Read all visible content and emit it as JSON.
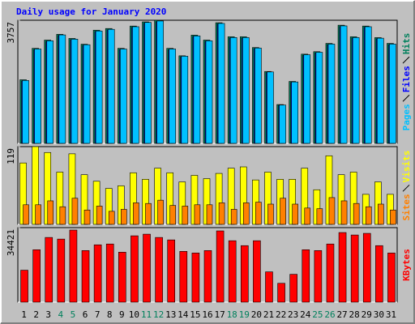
{
  "chart_data": [
    {
      "type": "bar",
      "title": "Daily usage for January 2020",
      "ylim": [
        0,
        3757
      ],
      "yticks": [
        3757
      ],
      "series": [
        {
          "name": "Hits",
          "color": "#00805c",
          "values": [
            1941,
            2900,
            3152,
            3328,
            3202,
            3026,
            3454,
            3505,
            2900,
            3580,
            3707,
            3757,
            2900,
            2673,
            3303,
            3152,
            3681,
            3253,
            3253,
            2925,
            2194,
            1185,
            1891,
            2723,
            2799,
            3051,
            3606,
            3253,
            3580,
            3227,
            3051
          ]
        },
        {
          "name": "Files",
          "color": "#0000ff",
          "values": [
            1900,
            2860,
            3110,
            3290,
            3160,
            2990,
            3410,
            3460,
            2860,
            3540,
            3660,
            3710,
            2860,
            2640,
            3260,
            3110,
            3640,
            3210,
            3210,
            2890,
            2160,
            1160,
            1860,
            2690,
            2760,
            3010,
            3560,
            3210,
            3540,
            3190,
            3010
          ]
        },
        {
          "name": "Pages",
          "color": "#00c0ff",
          "values": [
            1920,
            2880,
            3130,
            3310,
            3180,
            3010,
            3430,
            3480,
            2880,
            3560,
            3690,
            3735,
            2880,
            2660,
            3280,
            3130,
            3660,
            3230,
            3230,
            2910,
            2180,
            1170,
            1875,
            2705,
            2780,
            3030,
            3585,
            3230,
            3560,
            3210,
            3030
          ]
        }
      ]
    },
    {
      "type": "bar",
      "ylim": [
        0,
        119
      ],
      "yticks": [
        119
      ],
      "series": [
        {
          "name": "Visits",
          "color": "#ffff00",
          "values": [
            94,
            119,
            110,
            80,
            108,
            76,
            66,
            55,
            59,
            79,
            69,
            86,
            79,
            65,
            75,
            70,
            78,
            86,
            88,
            68,
            80,
            69,
            69,
            86,
            53,
            105,
            76,
            80,
            46,
            65,
            46
          ]
        },
        {
          "name": "Sites",
          "color": "#ff8000",
          "values": [
            30,
            30,
            36,
            27,
            40,
            22,
            28,
            20,
            23,
            33,
            32,
            37,
            29,
            28,
            30,
            30,
            33,
            23,
            33,
            34,
            31,
            40,
            31,
            25,
            24,
            41,
            36,
            32,
            27,
            31,
            22
          ]
        }
      ]
    },
    {
      "type": "bar",
      "ylim": [
        0,
        34421
      ],
      "yticks": [
        34421
      ],
      "categories": [
        "1",
        "2",
        "3",
        "4",
        "5",
        "6",
        "7",
        "8",
        "9",
        "10",
        "11",
        "12",
        "13",
        "14",
        "15",
        "16",
        "17",
        "18",
        "19",
        "20",
        "21",
        "22",
        "23",
        "24",
        "25",
        "26",
        "27",
        "28",
        "29",
        "30",
        "31"
      ],
      "category_colors": [
        "#000000",
        "#000000",
        "#000000",
        "#00805c",
        "#00805c",
        "#000000",
        "#000000",
        "#000000",
        "#000000",
        "#000000",
        "#00805c",
        "#00805c",
        "#000000",
        "#000000",
        "#000000",
        "#000000",
        "#000000",
        "#00805c",
        "#00805c",
        "#000000",
        "#000000",
        "#000000",
        "#000000",
        "#000000",
        "#00805c",
        "#00805c",
        "#000000",
        "#000000",
        "#000000",
        "#000000",
        "#000000"
      ],
      "series": [
        {
          "name": "KBytes",
          "color": "#ff0000",
          "values": [
            14752,
            24208,
            29881,
            29125,
            33286,
            23830,
            26478,
            26856,
            23073,
            30638,
            31395,
            29881,
            28747,
            23452,
            22695,
            23830,
            32908,
            28369,
            26099,
            28369,
            13995,
            8700,
            12861,
            24208,
            23830,
            26856,
            32151,
            31016,
            31773,
            26099,
            22695
          ]
        }
      ]
    }
  ]
}
